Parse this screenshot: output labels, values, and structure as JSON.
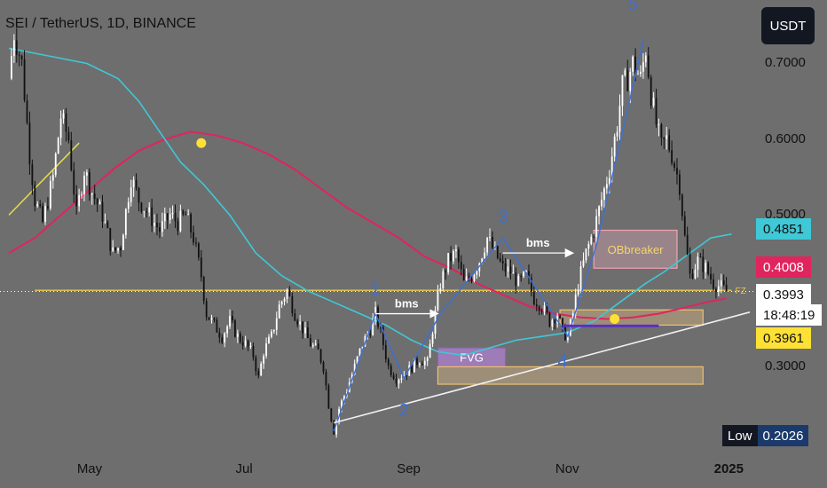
{
  "header": {
    "title": "SEI / TetherUS, 1D, BINANCE",
    "currency_button": "USDT"
  },
  "colors": {
    "background": "#6e6e6e",
    "candle_up": "#ffffff",
    "candle_down": "#111111",
    "ma_teal": "#3fc8d6",
    "ma_red": "#e0245e",
    "support_line": "#f0f0f0",
    "fz_line": "#e8c84a",
    "fvg_fill": "#a67fc4",
    "ob_fill": "#e8b0be",
    "zone_fill": "#f3cc8a",
    "wave_label": "#3d6fd8",
    "crossover_dot": "#ffe135"
  },
  "price_badges": [
    {
      "value": "0.4851",
      "bg": "#3fc8d6",
      "fg": "#111111"
    },
    {
      "value": "0.4008",
      "bg": "#e0245e",
      "fg": "#ffffff"
    },
    {
      "value": "0.3993",
      "bg": "#ffffff",
      "fg": "#111111"
    },
    {
      "value": "18:48:19",
      "bg": "#ffffff",
      "fg": "#111111"
    },
    {
      "value": "0.3961",
      "bg": "#ffe135",
      "fg": "#111111"
    }
  ],
  "low_badge": {
    "label": "Low",
    "value": "0.2026"
  },
  "chart_data": {
    "type": "candlestick",
    "ylim": [
      0.1893,
      0.7719
    ],
    "y_ticks": [
      "0.7000",
      "0.6000",
      "0.5000",
      "0.3000"
    ],
    "x_ticks": [
      {
        "label": "May",
        "day": 31
      },
      {
        "label": "Jul",
        "day": 92
      },
      {
        "label": "Sep",
        "day": 154
      },
      {
        "label": "Nov",
        "day": 215
      },
      {
        "label": "2025",
        "day": 276
      }
    ],
    "x_range_days": [
      0,
      285
    ],
    "close_anchors": [
      [
        0,
        0.68
      ],
      [
        2,
        0.74
      ],
      [
        5,
        0.7
      ],
      [
        8,
        0.58
      ],
      [
        10,
        0.52
      ],
      [
        13,
        0.49
      ],
      [
        17,
        0.55
      ],
      [
        20,
        0.63
      ],
      [
        23,
        0.6
      ],
      [
        26,
        0.5
      ],
      [
        29,
        0.56
      ],
      [
        32,
        0.53
      ],
      [
        36,
        0.5
      ],
      [
        40,
        0.45
      ],
      [
        43,
        0.46
      ],
      [
        47,
        0.55
      ],
      [
        50,
        0.52
      ],
      [
        54,
        0.5
      ],
      [
        58,
        0.48
      ],
      [
        62,
        0.5
      ],
      [
        65,
        0.49
      ],
      [
        68,
        0.5
      ],
      [
        71,
        0.47
      ],
      [
        74,
        0.42
      ],
      [
        76,
        0.37
      ],
      [
        79,
        0.355
      ],
      [
        82,
        0.34
      ],
      [
        85,
        0.36
      ],
      [
        88,
        0.34
      ],
      [
        91,
        0.33
      ],
      [
        94,
        0.315
      ],
      [
        96,
        0.285
      ],
      [
        98,
        0.32
      ],
      [
        101,
        0.34
      ],
      [
        104,
        0.38
      ],
      [
        107,
        0.4
      ],
      [
        110,
        0.37
      ],
      [
        113,
        0.35
      ],
      [
        116,
        0.33
      ],
      [
        119,
        0.32
      ],
      [
        121,
        0.3
      ],
      [
        123,
        0.25
      ],
      [
        125,
        0.215
      ],
      [
        127,
        0.245
      ],
      [
        130,
        0.27
      ],
      [
        133,
        0.3
      ],
      [
        136,
        0.33
      ],
      [
        139,
        0.35
      ],
      [
        141,
        0.37
      ],
      [
        143,
        0.345
      ],
      [
        146,
        0.3
      ],
      [
        149,
        0.285
      ],
      [
        152,
        0.29
      ],
      [
        155,
        0.3
      ],
      [
        158,
        0.31
      ],
      [
        161,
        0.305
      ],
      [
        163,
        0.35
      ],
      [
        166,
        0.41
      ],
      [
        169,
        0.44
      ],
      [
        172,
        0.45
      ],
      [
        175,
        0.41
      ],
      [
        178,
        0.42
      ],
      [
        181,
        0.44
      ],
      [
        184,
        0.47
      ],
      [
        187,
        0.45
      ],
      [
        190,
        0.43
      ],
      [
        193,
        0.425
      ],
      [
        196,
        0.41
      ],
      [
        199,
        0.42
      ],
      [
        202,
        0.39
      ],
      [
        205,
        0.38
      ],
      [
        208,
        0.36
      ],
      [
        211,
        0.37
      ],
      [
        213,
        0.345
      ],
      [
        215,
        0.34
      ],
      [
        217,
        0.37
      ],
      [
        219,
        0.41
      ],
      [
        222,
        0.45
      ],
      [
        225,
        0.48
      ],
      [
        228,
        0.52
      ],
      [
        231,
        0.56
      ],
      [
        234,
        0.62
      ],
      [
        236,
        0.67
      ],
      [
        238,
        0.68
      ],
      [
        240,
        0.7
      ],
      [
        243,
        0.68
      ],
      [
        245,
        0.72
      ],
      [
        247,
        0.66
      ],
      [
        249,
        0.62
      ],
      [
        251,
        0.59
      ],
      [
        253,
        0.6
      ],
      [
        255,
        0.58
      ],
      [
        258,
        0.54
      ],
      [
        260,
        0.47
      ],
      [
        262,
        0.42
      ],
      [
        265,
        0.44
      ],
      [
        268,
        0.43
      ],
      [
        271,
        0.41
      ],
      [
        274,
        0.405
      ],
      [
        276,
        0.3993
      ]
    ],
    "ma_teal": [
      [
        0,
        0.72
      ],
      [
        15,
        0.71
      ],
      [
        30,
        0.7
      ],
      [
        42,
        0.68
      ],
      [
        50,
        0.65
      ],
      [
        58,
        0.61
      ],
      [
        66,
        0.57
      ],
      [
        75,
        0.54
      ],
      [
        85,
        0.5
      ],
      [
        95,
        0.45
      ],
      [
        105,
        0.42
      ],
      [
        115,
        0.4
      ],
      [
        125,
        0.385
      ],
      [
        135,
        0.37
      ],
      [
        145,
        0.355
      ],
      [
        155,
        0.335
      ],
      [
        165,
        0.32
      ],
      [
        175,
        0.315
      ],
      [
        185,
        0.325
      ],
      [
        195,
        0.335
      ],
      [
        205,
        0.34
      ],
      [
        215,
        0.345
      ],
      [
        225,
        0.36
      ],
      [
        235,
        0.385
      ],
      [
        245,
        0.41
      ],
      [
        252,
        0.425
      ],
      [
        258,
        0.44
      ],
      [
        264,
        0.455
      ],
      [
        270,
        0.47
      ],
      [
        278,
        0.475
      ]
    ],
    "ma_red": [
      [
        0,
        0.45
      ],
      [
        10,
        0.47
      ],
      [
        20,
        0.5
      ],
      [
        30,
        0.53
      ],
      [
        40,
        0.56
      ],
      [
        50,
        0.585
      ],
      [
        60,
        0.6
      ],
      [
        70,
        0.61
      ],
      [
        80,
        0.605
      ],
      [
        90,
        0.595
      ],
      [
        100,
        0.58
      ],
      [
        110,
        0.56
      ],
      [
        120,
        0.535
      ],
      [
        130,
        0.51
      ],
      [
        140,
        0.49
      ],
      [
        150,
        0.47
      ],
      [
        160,
        0.445
      ],
      [
        170,
        0.43
      ],
      [
        180,
        0.41
      ],
      [
        190,
        0.395
      ],
      [
        200,
        0.38
      ],
      [
        210,
        0.37
      ],
      [
        220,
        0.365
      ],
      [
        230,
        0.363
      ],
      [
        240,
        0.365
      ],
      [
        250,
        0.37
      ],
      [
        260,
        0.378
      ],
      [
        268,
        0.385
      ],
      [
        276,
        0.39
      ]
    ],
    "support_line": [
      [
        125,
        0.226
      ],
      [
        285,
        0.372
      ]
    ],
    "fz_line": {
      "y": 0.4008,
      "x": [
        10,
        278
      ],
      "label": "FZ"
    },
    "last_price_line": 0.3993,
    "trend_line_yellow": [
      [
        0,
        0.5
      ],
      [
        27,
        0.595
      ]
    ],
    "zones": [
      {
        "name": "fvg",
        "label": "FVG",
        "x": [
          165,
          191
        ],
        "y": [
          0.3,
          0.325
        ]
      },
      {
        "name": "obbreaker",
        "label": "OBbreaker",
        "x": [
          225,
          257
        ],
        "y": [
          0.43,
          0.48
        ]
      },
      {
        "name": "demand-zone-upper",
        "label": "",
        "x": [
          212,
          267
        ],
        "y": [
          0.355,
          0.375
        ]
      },
      {
        "name": "demand-zone-lower",
        "label": "",
        "x": [
          165,
          267
        ],
        "y": [
          0.277,
          0.3
        ]
      }
    ],
    "purple_line": {
      "y": 0.354,
      "x": [
        213,
        250
      ]
    },
    "bms": [
      {
        "label": "bms",
        "x": [
          141,
          165
        ],
        "y": 0.37
      },
      {
        "label": "bms",
        "x": [
          190,
          217
        ],
        "y": 0.45
      }
    ],
    "waves": [
      {
        "label": "1",
        "x": 141,
        "y": 0.395
      },
      {
        "label": "2",
        "x": 152,
        "y": 0.235
      },
      {
        "label": "3",
        "x": 190,
        "y": 0.49
      },
      {
        "label": "4",
        "x": 213,
        "y": 0.3
      },
      {
        "label": "5",
        "x": 240,
        "y": 0.77
      }
    ],
    "wave_path": [
      [
        125,
        0.215
      ],
      [
        141,
        0.37
      ],
      [
        152,
        0.285
      ],
      [
        166,
        0.37
      ],
      [
        190,
        0.47
      ],
      [
        215,
        0.34
      ],
      [
        226,
        0.46
      ],
      [
        244,
        0.73
      ]
    ],
    "crossover_dots": [
      [
        74,
        0.595
      ],
      [
        233,
        0.363
      ]
    ]
  }
}
